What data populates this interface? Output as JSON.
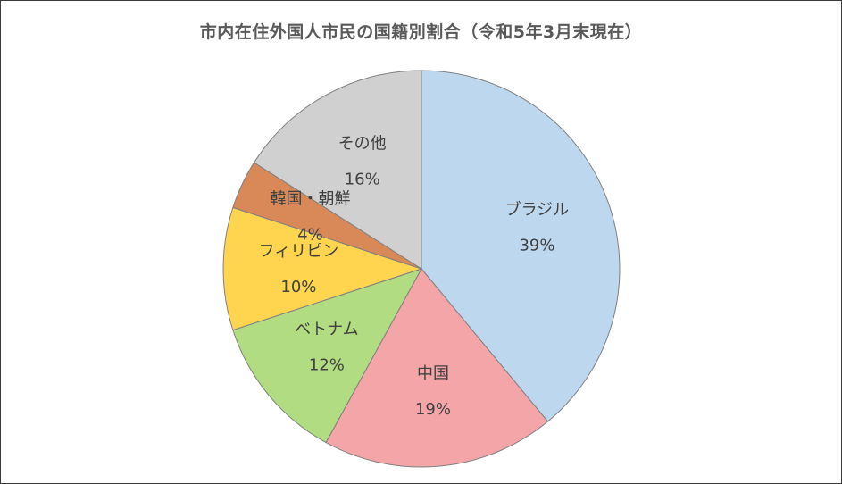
{
  "chart_data": {
    "type": "pie",
    "title": "市内在住外国人市民の国籍別割合（令和5年3月末現在）",
    "categories": [
      "ブラジル",
      "中国",
      "ベトナム",
      "フィリピン",
      "韓国・朝鮮",
      "その他"
    ],
    "values": [
      39,
      19,
      12,
      10,
      4,
      16
    ],
    "value_labels": [
      "39%",
      "19%",
      "12%",
      "10%",
      "4%",
      "16%"
    ],
    "colors": [
      "#bdd7ee",
      "#f4a5a8",
      "#b1dc81",
      "#ffd44f",
      "#d88957",
      "#d0d0d0"
    ],
    "start_angle": "12 o'clock",
    "direction": "clockwise",
    "legend": "none"
  }
}
